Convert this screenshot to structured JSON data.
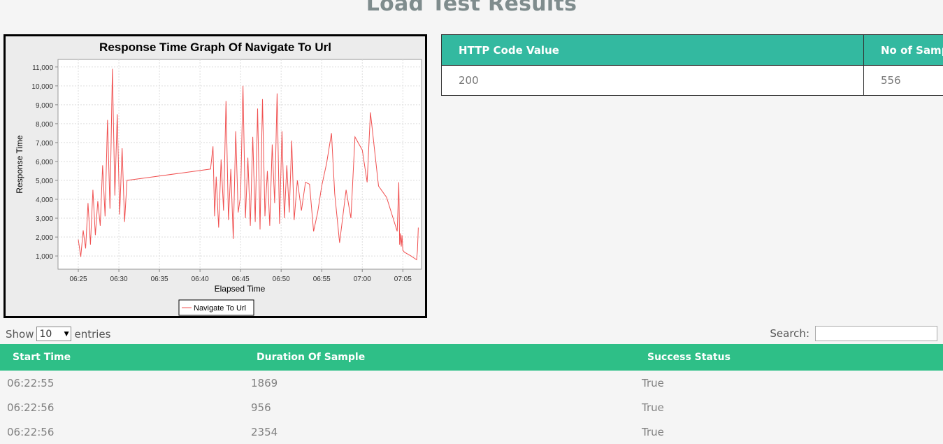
{
  "page": {
    "title": "Load Test Results"
  },
  "http_table": {
    "headers": [
      "HTTP Code Value",
      "No of Samples"
    ],
    "rows": [
      [
        "200",
        "556"
      ]
    ]
  },
  "controls": {
    "show_label": "Show",
    "entries_value": "10",
    "entries_label": "entries",
    "search_label": "Search:"
  },
  "data_table": {
    "headers": [
      "Start Time",
      "Duration Of Sample",
      "Success Status"
    ],
    "rows": [
      [
        "06:22:55",
        "1869",
        "True"
      ],
      [
        "06:22:56",
        "956",
        "True"
      ],
      [
        "06:22:56",
        "2354",
        "True"
      ]
    ]
  },
  "chart_data": {
    "type": "line",
    "title": "Response Time Graph Of Navigate To Url",
    "xlabel": "Elapsed Time",
    "ylabel": "Response Time",
    "x_ticks": [
      "06:25",
      "06:30",
      "06:35",
      "06:40",
      "06:45",
      "06:50",
      "06:55",
      "07:00",
      "07:05"
    ],
    "y_ticks": [
      1000,
      2000,
      3000,
      4000,
      5000,
      6000,
      7000,
      8000,
      9000,
      10000,
      11000
    ],
    "xlim": [
      -2.5,
      42.3
    ],
    "ylim": [
      300,
      11400
    ],
    "grid": true,
    "legend_position": "bottom",
    "line_color": "#f05050",
    "series": [
      {
        "name": "Navigate To Url",
        "x": [
          0.0,
          0.3,
          0.6,
          0.9,
          1.2,
          1.5,
          1.8,
          2.1,
          2.4,
          2.7,
          3.0,
          3.3,
          3.6,
          3.9,
          4.2,
          4.5,
          4.8,
          5.1,
          5.4,
          5.7,
          6.0,
          16.3,
          16.6,
          16.8,
          17.0,
          17.3,
          17.6,
          17.9,
          18.2,
          18.5,
          18.8,
          19.1,
          19.4,
          19.7,
          20.0,
          20.3,
          20.6,
          20.9,
          21.2,
          21.5,
          21.8,
          22.1,
          22.4,
          22.7,
          23.0,
          23.3,
          23.6,
          23.9,
          24.2,
          24.5,
          24.8,
          25.1,
          25.4,
          25.7,
          26.0,
          26.3,
          26.6,
          27.0,
          27.5,
          28.0,
          28.5,
          29.0,
          29.5,
          30.0,
          30.6,
          31.2,
          31.6,
          32.2,
          33.0,
          33.6,
          34.1,
          35.0,
          35.6,
          36.0,
          37.0,
          38.0,
          39.3,
          39.5,
          39.6,
          39.7,
          39.8,
          39.9,
          40.0,
          40.2,
          41.0,
          41.7,
          41.8,
          41.9
        ],
        "y": [
          1869,
          956,
          2354,
          1400,
          3800,
          1600,
          4500,
          2100,
          3900,
          2600,
          5800,
          3100,
          8200,
          3500,
          10900,
          4200,
          8500,
          3200,
          6700,
          2800,
          5000,
          5600,
          6800,
          3100,
          5200,
          2500,
          6100,
          3400,
          9200,
          2900,
          5600,
          1900,
          7600,
          3300,
          4200,
          10000,
          3000,
          6200,
          2600,
          7300,
          2800,
          8800,
          2400,
          9300,
          3100,
          5500,
          2600,
          6900,
          3800,
          9600,
          2700,
          7600,
          3000,
          5800,
          3300,
          7100,
          2900,
          5000,
          3400,
          4900,
          4800,
          2300,
          3300,
          4700,
          5900,
          7500,
          4300,
          1700,
          4500,
          3000,
          7300,
          6600,
          4900,
          8600,
          4700,
          4100,
          2300,
          4900,
          1600,
          2200,
          1500,
          2100,
          1300,
          1200,
          1000,
          800,
          1300,
          2500
        ]
      }
    ]
  }
}
